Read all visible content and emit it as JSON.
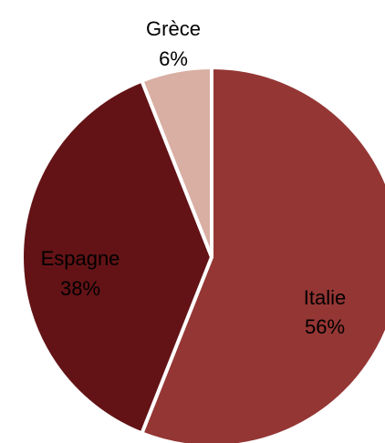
{
  "chart_data": {
    "type": "pie",
    "title": "",
    "start_angle_deg": 0,
    "direction": "clockwise",
    "slices": [
      {
        "label": "Italie",
        "value": 56,
        "value_label": "56%",
        "color": "#943634"
      },
      {
        "label": "Espagne",
        "value": 38,
        "value_label": "38%",
        "color": "#631316"
      },
      {
        "label": "Grèce",
        "value": 6,
        "value_label": "6%",
        "color": "#d9aea3"
      }
    ],
    "slice_border_color": "#ffffff",
    "background": "#ffffff"
  }
}
